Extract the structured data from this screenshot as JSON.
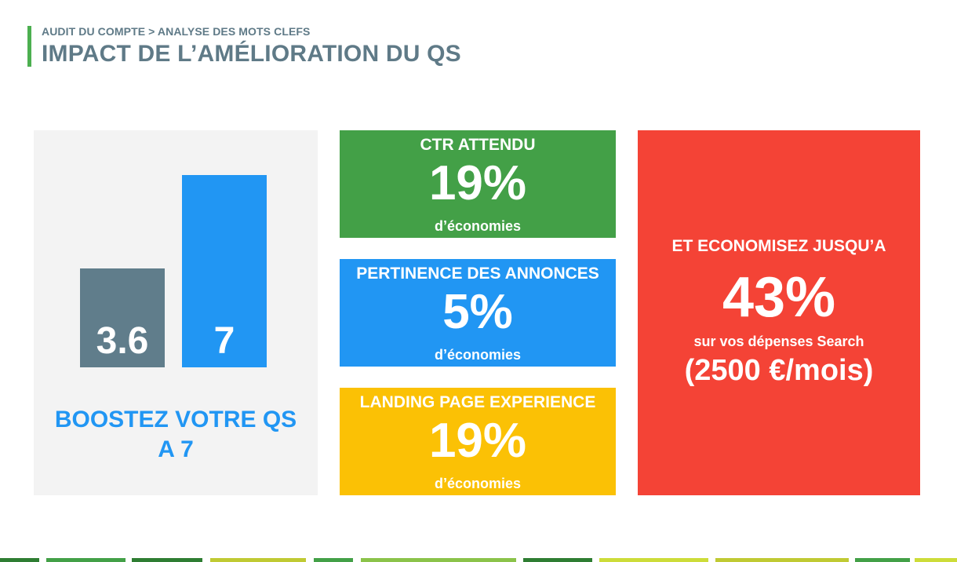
{
  "header": {
    "breadcrumb": "AUDIT DU COMPTE > ANALYSE DES MOTS CLEFS",
    "title": "IMPACT DE L’AMÉLIORATION DU QS"
  },
  "qs_panel": {
    "caption_line1": "BOOSTEZ VOTRE QS",
    "caption_line2": "A 7"
  },
  "chart_data": {
    "type": "bar",
    "categories": [
      "",
      ""
    ],
    "values": [
      3.6,
      7
    ],
    "value_labels": [
      "3.6",
      "7"
    ],
    "colors": [
      "#607d8b",
      "#2196f3"
    ],
    "ylim": [
      0,
      7
    ],
    "title": "",
    "xlabel": "",
    "ylabel": "",
    "grid": false,
    "legend": "none"
  },
  "metrics": [
    {
      "label": "CTR ATTENDU",
      "value": "19%",
      "sub": "d’économies",
      "color": "#43a047"
    },
    {
      "label": "PERTINENCE DES ANNONCES",
      "value": "5%",
      "sub": "d’économies",
      "color": "#2196f3"
    },
    {
      "label": "LANDING PAGE EXPERIENCE",
      "value": "19%",
      "sub": "d’économies",
      "color": "#fbc105"
    }
  ],
  "savings": {
    "label": "ET ECONOMISEZ JUSQU’A",
    "value": "43%",
    "sub": "sur vos dépenses Search",
    "amount": "(2500 €/mois)",
    "color": "#f44336"
  },
  "colors": {
    "accent": "#4caf50",
    "title_text": "#5f7a87",
    "panel_bg": "#f3f3f3",
    "footer": [
      "#2e7d32",
      "#43a047",
      "#8bc34a",
      "#c0ca33",
      "#cddc39"
    ]
  }
}
